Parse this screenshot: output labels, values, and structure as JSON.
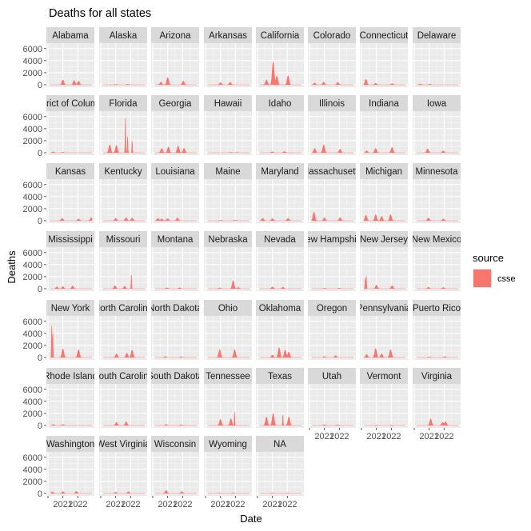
{
  "chart_data": {
    "type": "area",
    "title": "Deaths for all states",
    "xlabel": "Date",
    "ylabel": "Deaths",
    "ylim": [
      0,
      6500
    ],
    "y_ticks": [
      0,
      2000,
      4000,
      6000
    ],
    "y_tick_labels": [
      "0",
      "2000",
      "4000",
      "6000"
    ],
    "x_ticks": [
      "2021",
      "2022"
    ],
    "x_tick_labels": [
      "2021",
      "2022"
    ],
    "xlim": [
      "2020-01",
      "2022-12"
    ],
    "grid": true,
    "legend": {
      "title": "source",
      "position": "right",
      "entries": [
        {
          "label": "csse",
          "color": "#F8766D"
        }
      ]
    },
    "fill_color": "#F8766D",
    "panels": [
      {
        "label": "Alabama",
        "peaks": [
          {
            "x": 2021.0,
            "y": 800
          },
          {
            "x": 2021.75,
            "y": 700
          },
          {
            "x": 2022.05,
            "y": 600
          }
        ]
      },
      {
        "label": "Alaska",
        "peaks": [
          {
            "x": 2021.0,
            "y": 60
          },
          {
            "x": 2021.8,
            "y": 80
          }
        ]
      },
      {
        "label": "Arizona",
        "peaks": [
          {
            "x": 2020.55,
            "y": 450
          },
          {
            "x": 2021.0,
            "y": 1200
          },
          {
            "x": 2022.05,
            "y": 600
          }
        ]
      },
      {
        "label": "Arkansas",
        "peaks": [
          {
            "x": 2021.0,
            "y": 350
          },
          {
            "x": 2021.65,
            "y": 400
          }
        ]
      },
      {
        "label": "California",
        "peaks": [
          {
            "x": 2020.6,
            "y": 800
          },
          {
            "x": 2021.05,
            "y": 3800
          },
          {
            "x": 2021.3,
            "y": 1400
          },
          {
            "x": 2022.05,
            "y": 1500
          }
        ]
      },
      {
        "label": "Colorado",
        "peaks": [
          {
            "x": 2020.35,
            "y": 300
          },
          {
            "x": 2020.95,
            "y": 450
          },
          {
            "x": 2021.9,
            "y": 400
          }
        ]
      },
      {
        "label": "Connecticut",
        "peaks": [
          {
            "x": 2020.3,
            "y": 900
          },
          {
            "x": 2020.95,
            "y": 250
          },
          {
            "x": 2022.05,
            "y": 200
          }
        ]
      },
      {
        "label": "Delaware",
        "peaks": [
          {
            "x": 2020.4,
            "y": 120
          },
          {
            "x": 2021.05,
            "y": 110
          }
        ]
      },
      {
        "label": "District of Columbia",
        "peaks": [
          {
            "x": 2020.35,
            "y": 120
          },
          {
            "x": 2021.0,
            "y": 80
          }
        ]
      },
      {
        "label": "Florida",
        "peaks": [
          {
            "x": 2020.6,
            "y": 1300
          },
          {
            "x": 2021.05,
            "y": 1200
          },
          {
            "x": 2021.65,
            "y": 6000
          },
          {
            "x": 2021.8,
            "y": 2800
          },
          {
            "x": 2022.1,
            "y": 2100
          }
        ]
      },
      {
        "label": "Georgia",
        "peaks": [
          {
            "x": 2020.6,
            "y": 700
          },
          {
            "x": 2021.05,
            "y": 950
          },
          {
            "x": 2021.7,
            "y": 1100
          },
          {
            "x": 2022.1,
            "y": 700
          }
        ]
      },
      {
        "label": "Hawaii",
        "peaks": [
          {
            "x": 2021.7,
            "y": 60
          },
          {
            "x": 2022.1,
            "y": 50
          }
        ]
      },
      {
        "label": "Idaho",
        "peaks": [
          {
            "x": 2021.0,
            "y": 150
          },
          {
            "x": 2021.8,
            "y": 200
          }
        ]
      },
      {
        "label": "Illinois",
        "peaks": [
          {
            "x": 2020.35,
            "y": 700
          },
          {
            "x": 2020.95,
            "y": 1300
          },
          {
            "x": 2022.05,
            "y": 600
          }
        ]
      },
      {
        "label": "Indiana",
        "peaks": [
          {
            "x": 2020.35,
            "y": 300
          },
          {
            "x": 2020.95,
            "y": 700
          },
          {
            "x": 2022.05,
            "y": 900
          }
        ]
      },
      {
        "label": "Iowa",
        "peaks": [
          {
            "x": 2020.9,
            "y": 650
          },
          {
            "x": 2021.95,
            "y": 300
          }
        ]
      },
      {
        "label": "Kansas",
        "peaks": [
          {
            "x": 2020.95,
            "y": 400
          },
          {
            "x": 2022.05,
            "y": 300
          },
          {
            "x": 2022.9,
            "y": 500
          }
        ]
      },
      {
        "label": "Kentucky",
        "peaks": [
          {
            "x": 2021.0,
            "y": 400
          },
          {
            "x": 2021.7,
            "y": 500
          },
          {
            "x": 2022.1,
            "y": 450
          }
        ]
      },
      {
        "label": "Louisiana",
        "peaks": [
          {
            "x": 2020.35,
            "y": 400
          },
          {
            "x": 2020.6,
            "y": 300
          },
          {
            "x": 2021.0,
            "y": 350
          },
          {
            "x": 2021.65,
            "y": 450
          }
        ]
      },
      {
        "label": "Maine",
        "peaks": [
          {
            "x": 2021.0,
            "y": 60
          },
          {
            "x": 2022.0,
            "y": 80
          }
        ]
      },
      {
        "label": "Maryland",
        "peaks": [
          {
            "x": 2020.35,
            "y": 400
          },
          {
            "x": 2021.0,
            "y": 350
          },
          {
            "x": 2022.05,
            "y": 400
          }
        ]
      },
      {
        "label": "Massachusetts",
        "peaks": [
          {
            "x": 2020.3,
            "y": 1400
          },
          {
            "x": 2021.0,
            "y": 500
          },
          {
            "x": 2022.05,
            "y": 500
          }
        ]
      },
      {
        "label": "Michigan",
        "peaks": [
          {
            "x": 2020.3,
            "y": 900
          },
          {
            "x": 2020.95,
            "y": 1000
          },
          {
            "x": 2021.35,
            "y": 700
          },
          {
            "x": 2021.95,
            "y": 1000
          }
        ]
      },
      {
        "label": "Minnesota",
        "peaks": [
          {
            "x": 2020.95,
            "y": 450
          },
          {
            "x": 2021.95,
            "y": 300
          }
        ]
      },
      {
        "label": "Mississippi",
        "peaks": [
          {
            "x": 2020.6,
            "y": 300
          },
          {
            "x": 2021.0,
            "y": 350
          },
          {
            "x": 2021.65,
            "y": 450
          }
        ]
      },
      {
        "label": "Missouri",
        "peaks": [
          {
            "x": 2020.95,
            "y": 500
          },
          {
            "x": 2021.6,
            "y": 400
          },
          {
            "x": 2022.05,
            "y": 2500
          }
        ]
      },
      {
        "label": "Montana",
        "peaks": [
          {
            "x": 2020.95,
            "y": 150
          },
          {
            "x": 2021.8,
            "y": 150
          }
        ]
      },
      {
        "label": "Nebraska",
        "peaks": [
          {
            "x": 2020.95,
            "y": 150
          },
          {
            "x": 2021.85,
            "y": 1300
          },
          {
            "x": 2022.2,
            "y": 200
          }
        ]
      },
      {
        "label": "Nevada",
        "peaks": [
          {
            "x": 2021.0,
            "y": 300
          },
          {
            "x": 2021.7,
            "y": 250
          }
        ]
      },
      {
        "label": "New Hampshire",
        "peaks": [
          {
            "x": 2021.0,
            "y": 80
          },
          {
            "x": 2022.0,
            "y": 80
          }
        ]
      },
      {
        "label": "New Jersey",
        "peaks": [
          {
            "x": 2020.25,
            "y": 1800
          },
          {
            "x": 2020.32,
            "y": 2200
          },
          {
            "x": 2021.0,
            "y": 600
          },
          {
            "x": 2022.05,
            "y": 500
          }
        ]
      },
      {
        "label": "New Mexico",
        "peaks": [
          {
            "x": 2020.95,
            "y": 250
          },
          {
            "x": 2021.95,
            "y": 200
          }
        ]
      },
      {
        "label": "New York",
        "peaks": [
          {
            "x": 2020.25,
            "y": 5500
          },
          {
            "x": 2020.32,
            "y": 4200
          },
          {
            "x": 2021.0,
            "y": 1400
          },
          {
            "x": 2022.05,
            "y": 1300
          }
        ]
      },
      {
        "label": "North Carolina",
        "peaks": [
          {
            "x": 2021.05,
            "y": 600
          },
          {
            "x": 2021.75,
            "y": 700
          },
          {
            "x": 2022.1,
            "y": 1200
          }
        ]
      },
      {
        "label": "North Dakota",
        "peaks": [
          {
            "x": 2020.85,
            "y": 150
          },
          {
            "x": 2021.9,
            "y": 100
          }
        ]
      },
      {
        "label": "Ohio",
        "peaks": [
          {
            "x": 2020.95,
            "y": 1300
          },
          {
            "x": 2021.95,
            "y": 1300
          }
        ]
      },
      {
        "label": "Oklahoma",
        "peaks": [
          {
            "x": 2021.0,
            "y": 400
          },
          {
            "x": 2021.45,
            "y": 1600
          },
          {
            "x": 2021.85,
            "y": 1200
          },
          {
            "x": 2022.1,
            "y": 900
          }
        ]
      },
      {
        "label": "Oregon",
        "peaks": [
          {
            "x": 2021.0,
            "y": 150
          },
          {
            "x": 2021.75,
            "y": 300
          }
        ]
      },
      {
        "label": "Pennsylvania",
        "peaks": [
          {
            "x": 2020.35,
            "y": 500
          },
          {
            "x": 2020.95,
            "y": 1500
          },
          {
            "x": 2021.35,
            "y": 600
          },
          {
            "x": 2021.95,
            "y": 1300
          }
        ]
      },
      {
        "label": "Puerto Rico",
        "peaks": [
          {
            "x": 2021.0,
            "y": 100
          },
          {
            "x": 2022.05,
            "y": 150
          }
        ]
      },
      {
        "label": "Rhode Island",
        "peaks": [
          {
            "x": 2020.35,
            "y": 150
          },
          {
            "x": 2021.0,
            "y": 150
          }
        ]
      },
      {
        "label": "South Carolina",
        "peaks": [
          {
            "x": 2021.05,
            "y": 500
          },
          {
            "x": 2021.7,
            "y": 600
          }
        ]
      },
      {
        "label": "South Dakota",
        "peaks": [
          {
            "x": 2020.9,
            "y": 150
          },
          {
            "x": 2021.9,
            "y": 100
          }
        ]
      },
      {
        "label": "Tennessee",
        "peaks": [
          {
            "x": 2021.0,
            "y": 1000
          },
          {
            "x": 2021.7,
            "y": 1100
          },
          {
            "x": 2021.95,
            "y": 2300
          }
        ]
      },
      {
        "label": "Texas",
        "peaks": [
          {
            "x": 2020.6,
            "y": 1400
          },
          {
            "x": 2021.05,
            "y": 2000
          },
          {
            "x": 2021.7,
            "y": 1900
          },
          {
            "x": 2022.1,
            "y": 1400
          }
        ]
      },
      {
        "label": "Utah",
        "peaks": [
          {
            "x": 2021.0,
            "y": 100
          },
          {
            "x": 2021.9,
            "y": 100
          }
        ]
      },
      {
        "label": "Vermont",
        "peaks": [
          {
            "x": 2021.0,
            "y": 40
          },
          {
            "x": 2022.0,
            "y": 50
          }
        ]
      },
      {
        "label": "Virginia",
        "peaks": [
          {
            "x": 2021.1,
            "y": 1100
          },
          {
            "x": 2021.9,
            "y": 500
          },
          {
            "x": 2022.1,
            "y": 600
          }
        ]
      },
      {
        "label": "Washington",
        "peaks": [
          {
            "x": 2020.3,
            "y": 250
          },
          {
            "x": 2021.0,
            "y": 300
          },
          {
            "x": 2021.9,
            "y": 350
          }
        ]
      },
      {
        "label": "West Virginia",
        "peaks": [
          {
            "x": 2021.0,
            "y": 200
          },
          {
            "x": 2021.85,
            "y": 300
          }
        ]
      },
      {
        "label": "Wisconsin",
        "peaks": [
          {
            "x": 2020.9,
            "y": 500
          },
          {
            "x": 2021.95,
            "y": 300
          }
        ]
      },
      {
        "label": "Wyoming",
        "peaks": [
          {
            "x": 2020.95,
            "y": 60
          },
          {
            "x": 2021.85,
            "y": 80
          }
        ]
      },
      {
        "label": "NA",
        "peaks": [
          {
            "x": 2021.0,
            "y": 50
          },
          {
            "x": 2022.0,
            "y": 50
          }
        ]
      }
    ]
  }
}
